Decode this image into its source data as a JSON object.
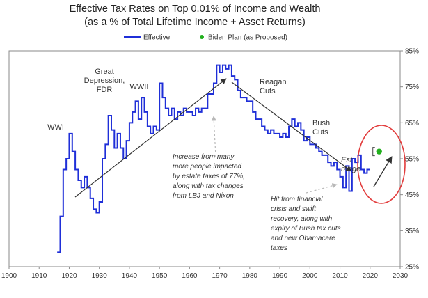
{
  "chart_data": {
    "type": "line",
    "title": "Effective Tax Rates on Top 0.01% of Income and Wealth",
    "subtitle": "(as a % of Total Lifetime Income + Asset Returns)",
    "xlabel": "",
    "ylabel": "",
    "xlim": [
      1900,
      2030
    ],
    "ylim": [
      25,
      85
    ],
    "x_ticks": [
      "1900",
      "1910",
      "1920",
      "1930",
      "1940",
      "1950",
      "1960",
      "1970",
      "1980",
      "1990",
      "2000",
      "2010",
      "2020",
      "2030"
    ],
    "y_ticks": [
      "25%",
      "35%",
      "45%",
      "55%",
      "65%",
      "75%",
      "85%"
    ],
    "y_axis_side": "right",
    "grid": false,
    "legend_position": "top",
    "colors": {
      "effective": "#1f2fd8",
      "biden": "#22b01e",
      "highlight": "#e23c3c",
      "arrow": "#333333",
      "note": "#333333"
    },
    "series": [
      {
        "name": "Effective",
        "style": "step",
        "x": [
          1916,
          1917,
          1918,
          1919,
          1920,
          1921,
          1922,
          1923,
          1924,
          1925,
          1926,
          1927,
          1928,
          1929,
          1930,
          1931,
          1932,
          1933,
          1934,
          1935,
          1936,
          1937,
          1938,
          1939,
          1940,
          1941,
          1942,
          1943,
          1944,
          1945,
          1946,
          1947,
          1948,
          1949,
          1950,
          1951,
          1952,
          1953,
          1954,
          1955,
          1956,
          1957,
          1958,
          1959,
          1960,
          1961,
          1962,
          1963,
          1964,
          1965,
          1966,
          1967,
          1968,
          1969,
          1970,
          1971,
          1972,
          1973,
          1974,
          1975,
          1976,
          1977,
          1978,
          1979,
          1980,
          1981,
          1982,
          1983,
          1984,
          1985,
          1986,
          1987,
          1988,
          1989,
          1990,
          1991,
          1992,
          1993,
          1994,
          1995,
          1996,
          1997,
          1998,
          1999,
          2000,
          2001,
          2002,
          2003,
          2004,
          2005,
          2006,
          2007,
          2008,
          2009,
          2010,
          2011,
          2012,
          2013,
          2014,
          2015,
          2016,
          2017,
          2018,
          2019
        ],
        "y": [
          29,
          39,
          52,
          55,
          62,
          57,
          52,
          49,
          47,
          50,
          47,
          44,
          41,
          40,
          43,
          55,
          59,
          67,
          63,
          58,
          62,
          58,
          55,
          60,
          65,
          68,
          71,
          66,
          72,
          68,
          64,
          62,
          64,
          63,
          76,
          72,
          69,
          67,
          69,
          66,
          68,
          67,
          69,
          68,
          68,
          67,
          69,
          68,
          69,
          69,
          73,
          73,
          76,
          81,
          79,
          81,
          80,
          81,
          78,
          77,
          74,
          72,
          72,
          71,
          71,
          68,
          66,
          66,
          64,
          63,
          62,
          63,
          62,
          62,
          61,
          62,
          61,
          64,
          66,
          64,
          65,
          63,
          60,
          61,
          59,
          59,
          58,
          57,
          56,
          56,
          54,
          53,
          54,
          52,
          50,
          47,
          53,
          46,
          55,
          54,
          56,
          52,
          51,
          52
        ]
      },
      {
        "name": "Biden Plan (as Proposed)",
        "style": "point",
        "x": [
          2023
        ],
        "y": [
          57
        ]
      }
    ],
    "annotations": [
      {
        "id": "wwi",
        "lines": [
          "WWI"
        ]
      },
      {
        "id": "depression",
        "lines": [
          "Great",
          "Depression,",
          "FDR"
        ]
      },
      {
        "id": "wwii",
        "lines": [
          "WWII"
        ]
      },
      {
        "id": "reagan",
        "lines": [
          "Reagan",
          "Cuts"
        ]
      },
      {
        "id": "bush",
        "lines": [
          "Bush",
          "Cuts"
        ]
      },
      {
        "id": "est",
        "lines": [
          "Est",
          "range"
        ]
      },
      {
        "id": "increase",
        "lines": [
          "Increase from many",
          "more people impacted",
          "by estate taxes of 77%,",
          "along with tax changes",
          "from LBJ and Nixon"
        ]
      },
      {
        "id": "hit",
        "lines": [
          "Hit from financial",
          "crisis and swift",
          "recovery, along with",
          "expiry of Bush tax cuts",
          "and new Obamacare",
          "taxes"
        ]
      }
    ]
  }
}
